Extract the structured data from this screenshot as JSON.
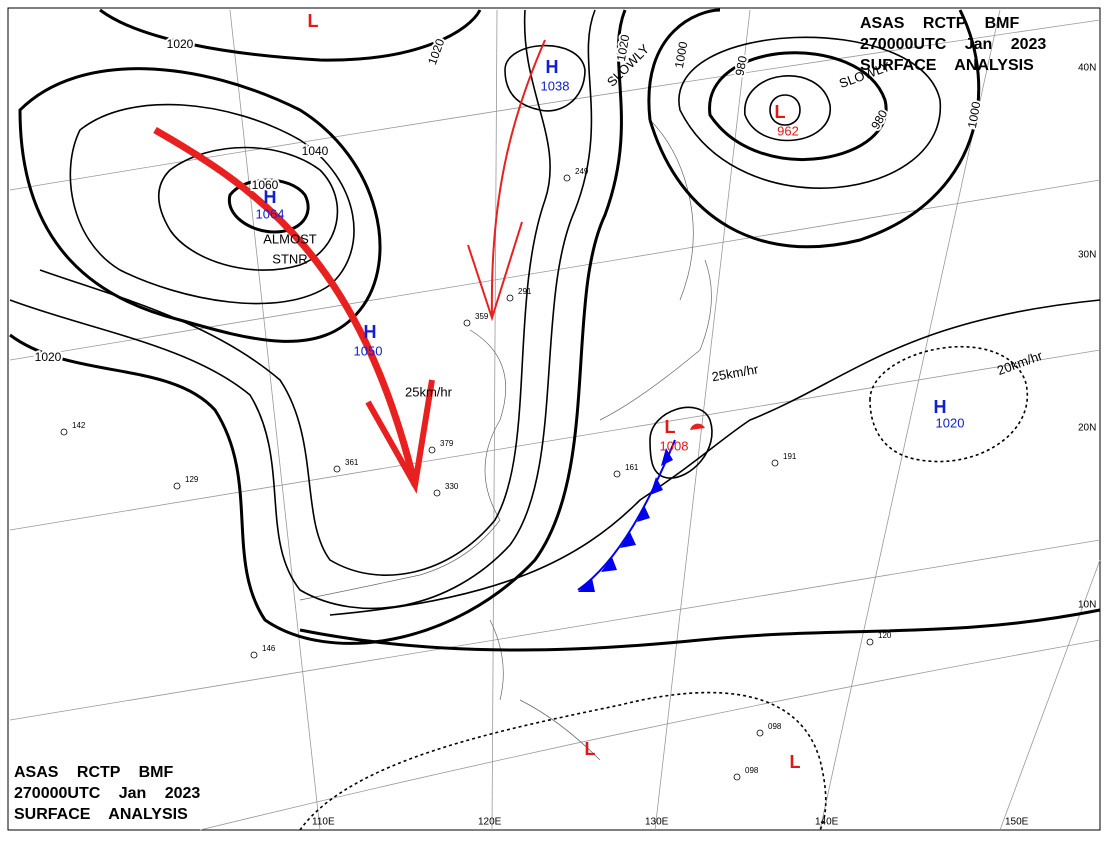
{
  "header_top": {
    "line1": "ASAS RCTP BMF",
    "line2": "270000UTC Jan 2023",
    "line3": "SURFACE ANALYSIS"
  },
  "header_bottom": {
    "line1": "ASAS RCTP BMF",
    "line2": "270000UTC Jan 2023",
    "line3": "SURFACE ANALYSIS"
  },
  "systems": [
    {
      "label": "L"
    },
    {
      "label": "H",
      "pressure": "1038"
    },
    {
      "label": "H",
      "pressure": "1064"
    },
    {
      "label": "H",
      "pressure": "1050"
    },
    {
      "label": "L",
      "pressure": "962"
    },
    {
      "label": "L",
      "pressure": "1008"
    },
    {
      "label": "H",
      "pressure": "1020"
    },
    {
      "label": "L"
    },
    {
      "label": "L"
    }
  ],
  "motions": [
    "SLOWLY",
    "SLOWLY",
    "25km/hr",
    "25km/hr",
    "20km/hr"
  ],
  "notes": [
    "ALMOST",
    "STNR"
  ],
  "isobar_labels": [
    "1020",
    "1020",
    "1040",
    "1060",
    "1020",
    "1020",
    "1000",
    "980",
    "980",
    "1000"
  ],
  "latitudes": [
    "40N",
    "30N",
    "20N",
    "10N"
  ],
  "longitudes": [
    "110E",
    "120E",
    "130E",
    "140E",
    "150E"
  ],
  "stations": [
    "330",
    "379",
    "361",
    "359",
    "291",
    "249",
    "129",
    "142",
    "120",
    "191",
    "161",
    "146",
    "098",
    "098"
  ]
}
